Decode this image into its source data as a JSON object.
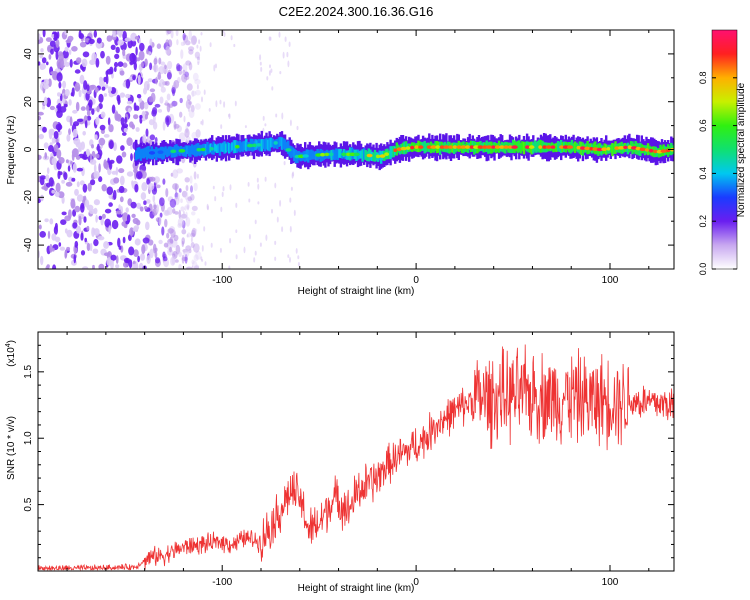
{
  "title": "C2E2.2024.300.16.36.G16",
  "chart_data": [
    {
      "type": "heatmap",
      "xlabel": "Height of straight line (km)",
      "ylabel": "Frequency (Hz)",
      "xlim": [
        -195,
        133
      ],
      "ylim": [
        -50,
        50
      ],
      "xticks": [
        -100,
        0,
        100
      ],
      "yticks": [
        -40,
        -20,
        0,
        20,
        40
      ],
      "colorbar": {
        "label": "Normalized spectral amplitude",
        "range": [
          0,
          1
        ],
        "ticks": [
          0.0,
          0.2,
          0.4,
          0.6,
          0.8
        ]
      },
      "signal_center_hz": [
        {
          "x": -145,
          "y": -2
        },
        {
          "x": -130,
          "y": -1
        },
        {
          "x": -110,
          "y": 0
        },
        {
          "x": -95,
          "y": 1
        },
        {
          "x": -80,
          "y": 2
        },
        {
          "x": -70,
          "y": 3
        },
        {
          "x": -62,
          "y": -3
        },
        {
          "x": -45,
          "y": -2
        },
        {
          "x": -30,
          "y": -2
        },
        {
          "x": -18,
          "y": -3
        },
        {
          "x": -10,
          "y": 0
        },
        {
          "x": 0,
          "y": 1
        },
        {
          "x": 20,
          "y": 1
        },
        {
          "x": 40,
          "y": 1
        },
        {
          "x": 60,
          "y": 1
        },
        {
          "x": 80,
          "y": 1
        },
        {
          "x": 95,
          "y": 0
        },
        {
          "x": 110,
          "y": 1
        },
        {
          "x": 125,
          "y": -1
        },
        {
          "x": 133,
          "y": 0
        }
      ],
      "signal_strength": [
        {
          "x": -145,
          "y": 0.35
        },
        {
          "x": -100,
          "y": 0.55
        },
        {
          "x": -60,
          "y": 0.5
        },
        {
          "x": -20,
          "y": 0.75
        },
        {
          "x": 0,
          "y": 0.95
        },
        {
          "x": 133,
          "y": 0.95
        }
      ],
      "noise_region": {
        "from": -195,
        "to": -120
      }
    },
    {
      "type": "line",
      "xlabel": "Height of straight line (km)",
      "ylabel": "SNR (10 * v/v)",
      "y_multiplier": "(x10",
      "y_multiplier_exp": "4",
      "y_multiplier_close": ")",
      "xlim": [
        -195,
        133
      ],
      "ylim": [
        0,
        1.8
      ],
      "xticks": [
        -100,
        0,
        100
      ],
      "yticks": [
        0.5,
        1.0,
        1.5
      ],
      "ytick_labels": [
        "0.5",
        "1.0",
        "1.5"
      ],
      "color": "#ee3333",
      "series": [
        {
          "x": [
            -195,
            -170,
            -145,
            -138,
            -130,
            -120,
            -110,
            -100,
            -95,
            -88,
            -80,
            -75,
            -70,
            -65,
            -60,
            -55,
            -50,
            -45,
            -40,
            -35,
            -30,
            -25,
            -20,
            -15,
            -10,
            -5,
            0,
            5,
            10,
            15,
            20,
            25,
            30,
            40,
            50,
            60,
            70,
            80,
            90,
            100,
            110,
            120,
            133
          ],
          "y": [
            0.02,
            0.02,
            0.03,
            0.1,
            0.12,
            0.18,
            0.2,
            0.22,
            0.2,
            0.25,
            0.22,
            0.35,
            0.45,
            0.6,
            0.55,
            0.3,
            0.35,
            0.5,
            0.55,
            0.45,
            0.6,
            0.65,
            0.7,
            0.8,
            0.85,
            0.9,
            0.95,
            1.0,
            1.1,
            1.15,
            1.2,
            1.25,
            1.3,
            1.3,
            1.32,
            1.33,
            1.3,
            1.32,
            1.28,
            1.3,
            1.28,
            1.27,
            1.25
          ]
        }
      ]
    }
  ]
}
